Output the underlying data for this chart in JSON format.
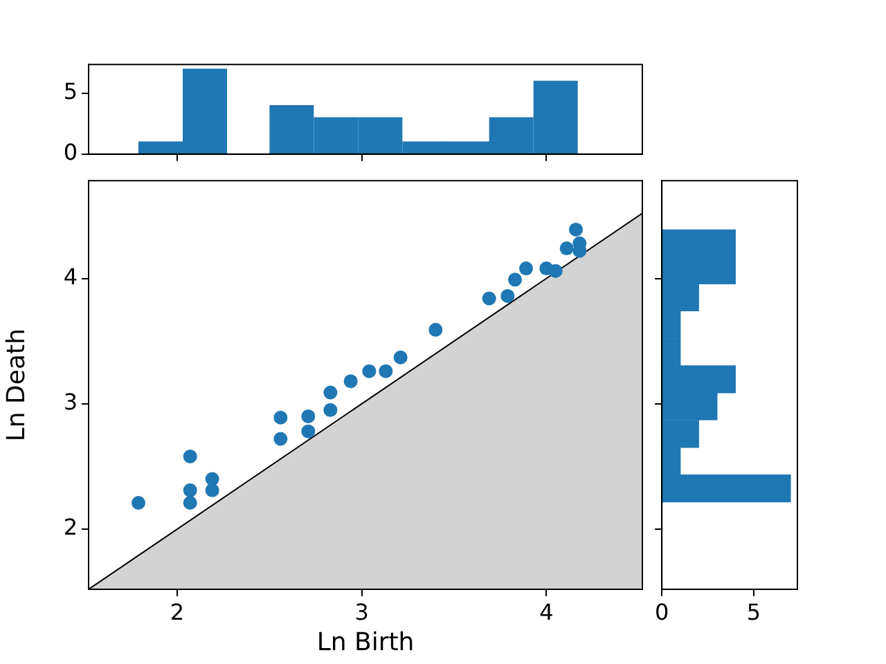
{
  "chart_data": [
    {
      "type": "histogram",
      "bins": [
        1.79,
        2.03,
        2.27,
        2.5,
        2.74,
        2.98,
        3.22,
        3.46,
        3.69,
        3.93,
        4.17
      ],
      "values": [
        1,
        7,
        0,
        4,
        3,
        3,
        1,
        1,
        3,
        6
      ],
      "color": "#1f77b4",
      "xlim": [
        1.52,
        4.52
      ],
      "xticks": [
        {
          "value": 2,
          "label": null
        },
        {
          "value": 3,
          "label": null
        },
        {
          "value": 4,
          "label": null
        }
      ],
      "ylim": [
        0,
        7.38
      ],
      "yticks": [
        0,
        5
      ],
      "tick_labels": "y",
      "grid": false
    },
    {
      "type": "scatter",
      "xlabel": "Ln Birth",
      "ylabel": "Ln Death",
      "xlim": [
        1.52,
        4.52
      ],
      "xticks": [
        2,
        3,
        4
      ],
      "ylim": [
        1.52,
        4.78
      ],
      "yticks": [
        2,
        3,
        4
      ],
      "grid": false,
      "series": [
        {
          "type": "scatter",
          "marker": "circle",
          "color": "#1f77b4",
          "x": [
            1.79,
            2.07,
            2.07,
            2.07,
            2.19,
            2.19,
            2.56,
            2.56,
            2.71,
            2.71,
            2.83,
            2.83,
            2.94,
            3.04,
            3.13,
            3.21,
            3.4,
            3.69,
            3.79,
            3.83,
            3.89,
            4.0,
            4.05,
            4.11,
            4.16,
            4.18,
            4.18
          ],
          "values": [
            2.21,
            2.58,
            2.31,
            2.21,
            2.4,
            2.31,
            2.89,
            2.72,
            2.9,
            2.78,
            3.09,
            2.95,
            3.18,
            3.26,
            3.26,
            3.37,
            3.59,
            3.84,
            3.86,
            3.99,
            4.08,
            4.08,
            4.06,
            4.24,
            4.39,
            4.28,
            4.22
          ]
        },
        {
          "type": "area",
          "color": "#d3d3d3",
          "x": [
            1.52,
            4.52
          ],
          "values": [
            1.52,
            4.52
          ]
        }
      ]
    },
    {
      "type": "histogram",
      "orientation": "horizontal",
      "bins": [
        2.22,
        2.43,
        2.65,
        2.87,
        3.09,
        3.3,
        3.52,
        3.74,
        3.96,
        4.17,
        4.39
      ],
      "values": [
        7,
        1,
        2,
        3,
        4,
        1,
        1,
        2,
        4,
        4
      ],
      "color": "#1f77b4",
      "xlim": [
        0,
        7.38
      ],
      "xticks": [
        0,
        5
      ],
      "ylim": [
        1.52,
        4.78
      ],
      "yticks": [
        {
          "value": 2,
          "label": null
        },
        {
          "value": 3,
          "label": null
        },
        {
          "value": 4,
          "label": null
        }
      ],
      "tick_labels": "x",
      "grid": false
    }
  ]
}
